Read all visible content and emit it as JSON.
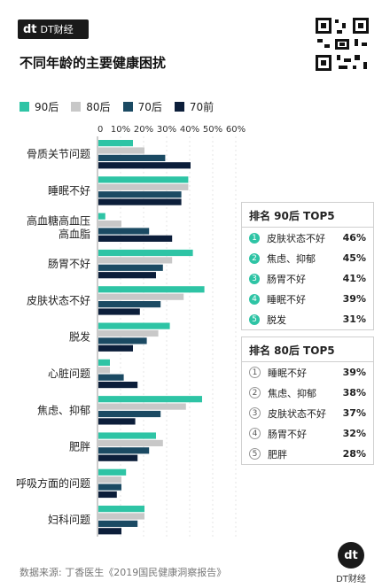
{
  "header": {
    "brand_mark": "dt",
    "brand_name": "DT财经"
  },
  "title": "不同年龄的主要健康困扰",
  "colors": {
    "s90": "#2ec4a5",
    "s80": "#c8c8c8",
    "s70": "#1b4a63",
    "s70b": "#0c1e3a"
  },
  "chart_data": {
    "type": "bar",
    "orientation": "horizontal",
    "xlim": [
      0,
      60
    ],
    "x_ticks": [
      "0",
      "10%",
      "20%",
      "30%",
      "40%",
      "50%",
      "60%"
    ],
    "categories": [
      "骨质关节问题",
      "睡眠不好",
      "高血糖高血压高血脂",
      "肠胃不好",
      "皮肤状态不好",
      "脱发",
      "心脏问题",
      "焦虑、抑郁",
      "肥胖",
      "呼吸方面的问题",
      "妇科问题"
    ],
    "category_lines": [
      [
        "骨质关节问题"
      ],
      [
        "睡眠不好"
      ],
      [
        "高血糖高血压",
        "高血脂"
      ],
      [
        "肠胃不好"
      ],
      [
        "皮肤状态不好"
      ],
      [
        "脱发"
      ],
      [
        "心脏问题"
      ],
      [
        "焦虑、抑郁"
      ],
      [
        "肥胖"
      ],
      [
        "呼吸方面的问题"
      ],
      [
        "妇科问题"
      ]
    ],
    "series": [
      {
        "name": "90后",
        "color": "#2ec4a5",
        "values": [
          15,
          39,
          3,
          41,
          46,
          31,
          5,
          45,
          25,
          12,
          20
        ]
      },
      {
        "name": "80后",
        "color": "#c8c8c8",
        "values": [
          20,
          39,
          10,
          32,
          37,
          26,
          5,
          38,
          28,
          10,
          20
        ]
      },
      {
        "name": "70后",
        "color": "#1b4a63",
        "values": [
          29,
          36,
          22,
          28,
          27,
          21,
          11,
          27,
          22,
          10,
          17
        ]
      },
      {
        "name": "70前",
        "color": "#0c1e3a",
        "values": [
          40,
          36,
          32,
          25,
          18,
          15,
          17,
          16,
          17,
          8,
          10
        ]
      }
    ]
  },
  "top90": {
    "title": "排名 90后 TOP5",
    "items": [
      {
        "n": "1",
        "label": "皮肤状态不好",
        "pct": "46%"
      },
      {
        "n": "2",
        "label": "焦虑、抑郁",
        "pct": "45%"
      },
      {
        "n": "3",
        "label": "肠胃不好",
        "pct": "41%"
      },
      {
        "n": "4",
        "label": "睡眠不好",
        "pct": "39%"
      },
      {
        "n": "5",
        "label": "脱发",
        "pct": "31%"
      }
    ]
  },
  "top80": {
    "title": "排名 80后 TOP5",
    "items": [
      {
        "n": "1",
        "label": "睡眠不好",
        "pct": "39%"
      },
      {
        "n": "2",
        "label": "焦虑、抑郁",
        "pct": "38%"
      },
      {
        "n": "3",
        "label": "皮肤状态不好",
        "pct": "37%"
      },
      {
        "n": "4",
        "label": "肠胃不好",
        "pct": "32%"
      },
      {
        "n": "5",
        "label": "肥胖",
        "pct": "28%"
      }
    ]
  },
  "source": "数据来源: 丁香医生《2019国民健康洞察报告》",
  "footer": {
    "mark": "dt",
    "name": "DT财经"
  }
}
